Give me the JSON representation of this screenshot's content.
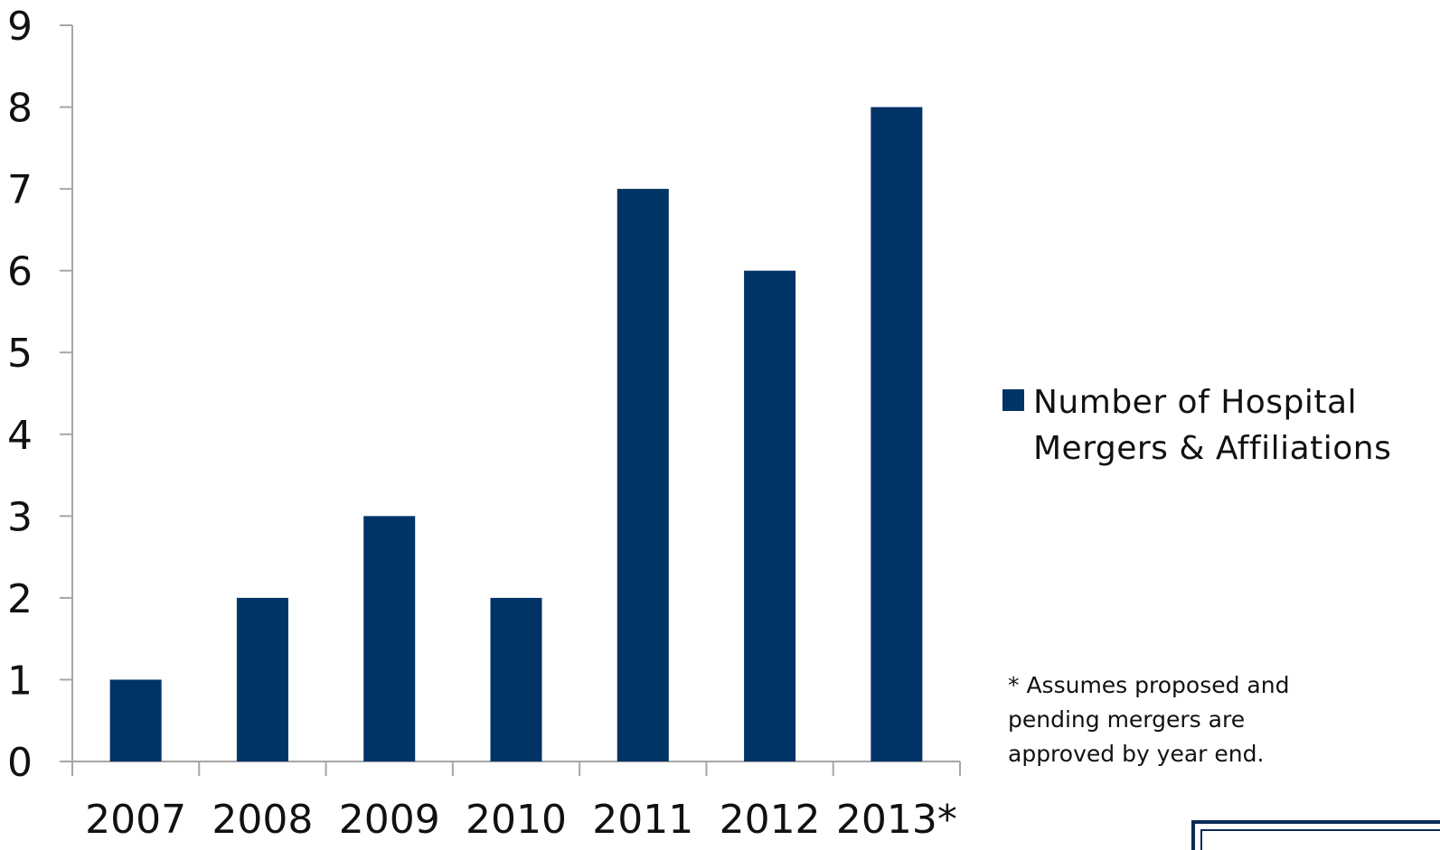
{
  "chart_data": {
    "type": "bar",
    "categories": [
      "2007",
      "2008",
      "2009",
      "2010",
      "2011",
      "2012",
      "2013*"
    ],
    "series": [
      {
        "name": "Number of Hospital Mergers & Affiliations",
        "values": [
          1,
          2,
          3,
          2,
          7,
          6,
          8
        ]
      }
    ],
    "ylim": [
      0,
      9
    ],
    "yticks": [
      0,
      1,
      2,
      3,
      4,
      5,
      6,
      7,
      8,
      9
    ],
    "xlabel": "",
    "ylabel": "",
    "grid": false,
    "legend_position": "right",
    "bar_color": "#003366",
    "axis_color": "#a6a6a6"
  },
  "footnote": "* Assumes proposed and pending mergers are approved by year end.",
  "logo": {
    "color": "#0b2b55"
  }
}
